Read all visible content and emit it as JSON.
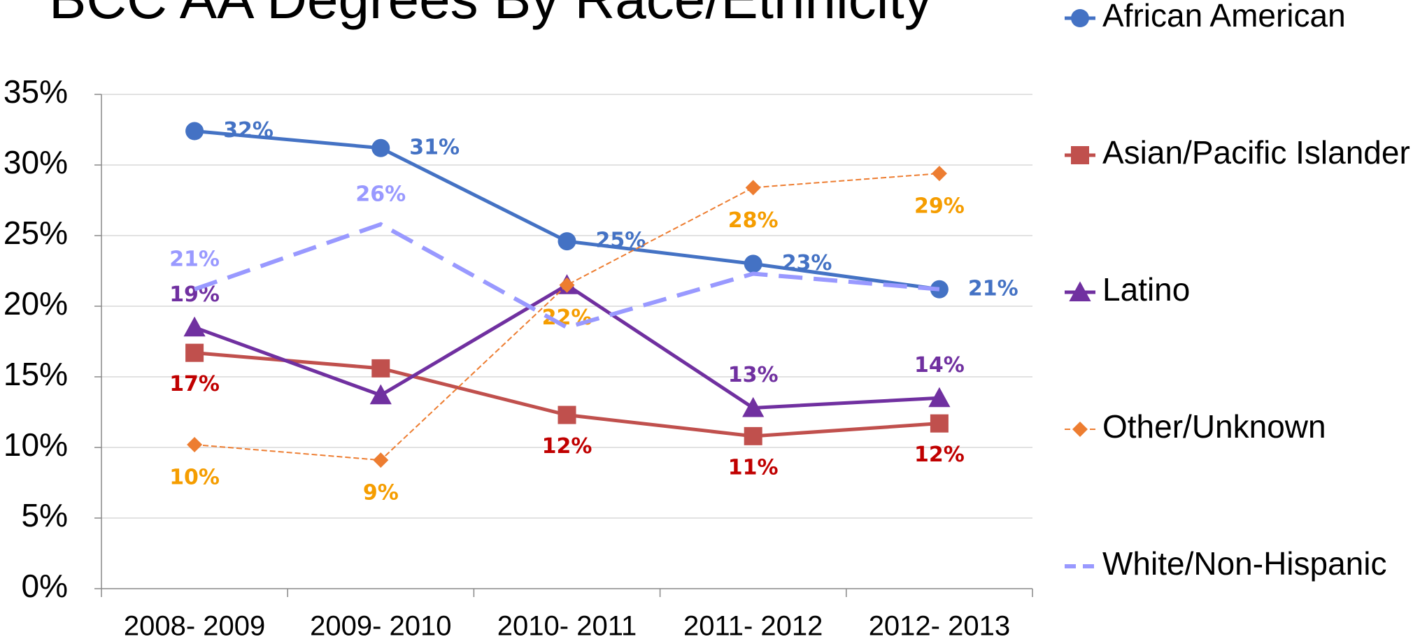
{
  "chart_data": {
    "type": "line",
    "title": "BCC AA Degrees By Race/Ethnicity",
    "categories": [
      "2008- 2009",
      "2009- 2010",
      "2010- 2011",
      "2011- 2012",
      "2012- 2013"
    ],
    "series": [
      {
        "name": "African American",
        "color": "#4472c4",
        "label_color": "#4472c4",
        "marker": "circle",
        "dash": "solid",
        "values": [
          32.4,
          31.2,
          24.6,
          23.0,
          21.2
        ],
        "value_labels": [
          "32%",
          "31%",
          "25%",
          "23%",
          "21%"
        ]
      },
      {
        "name": "Asian/Pacific Islander",
        "color": "#c0504d",
        "label_color": "#c00000",
        "marker": "square",
        "dash": "solid",
        "values": [
          16.7,
          15.6,
          12.3,
          10.8,
          11.7
        ],
        "value_labels": [
          "17%",
          null,
          "12%",
          "11%",
          "12%"
        ]
      },
      {
        "name": "Latino",
        "color": "#7030a0",
        "label_color": "#7030a0",
        "marker": "triangle",
        "dash": "solid",
        "values": [
          18.5,
          13.7,
          21.5,
          12.8,
          13.5
        ],
        "value_labels": [
          "19%",
          null,
          null,
          "13%",
          "14%"
        ]
      },
      {
        "name": "Other/Unknown",
        "color": "#ed7d31",
        "label_color": "#f59d00",
        "marker": "diamond",
        "dash": "thin",
        "values": [
          10.2,
          9.1,
          21.5,
          28.4,
          29.4
        ],
        "value_labels": [
          "10%",
          "9%",
          "22%",
          "28%",
          "29%"
        ]
      },
      {
        "name": "White/Non-Hispanic",
        "color": "#9999ff",
        "label_color": "#9999ff",
        "marker": "none",
        "dash": "dashed",
        "values": [
          21.2,
          25.8,
          18.5,
          22.3,
          21.2
        ],
        "value_labels": [
          "21%",
          "26%",
          null,
          null,
          null
        ]
      }
    ],
    "ylim": [
      0,
      35
    ],
    "yticks": [
      {
        "value": 0,
        "label": "0%"
      },
      {
        "value": 5,
        "label": "5%"
      },
      {
        "value": 10,
        "label": "10%"
      },
      {
        "value": 15,
        "label": "15%"
      },
      {
        "value": 20,
        "label": "20%"
      },
      {
        "value": 25,
        "label": "25%"
      },
      {
        "value": 30,
        "label": "30%"
      },
      {
        "value": 35,
        "label": "35%"
      }
    ],
    "grid": true,
    "legend": "right"
  }
}
